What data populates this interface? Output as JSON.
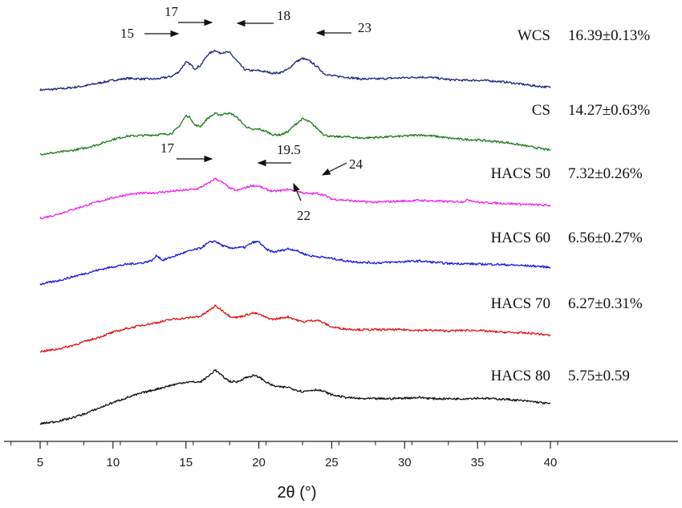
{
  "chart_data": {
    "type": "line",
    "xlabel": "2θ (°)",
    "ylabel": "",
    "xlim": [
      5,
      40
    ],
    "xticks": [
      "5",
      "10",
      "15",
      "20",
      "25",
      "30",
      "35",
      "40"
    ],
    "grid": false,
    "series": [
      {
        "name": "WCS",
        "crystallinity": "16.39±0.13%",
        "color": "#1a237e",
        "baseline": 0.0,
        "x": [
          5,
          6,
          7,
          8,
          9,
          10,
          11,
          12,
          13,
          14,
          14.5,
          15,
          15.3,
          15.6,
          16,
          16.5,
          17,
          17.3,
          17.6,
          18,
          18.5,
          19,
          19.5,
          20,
          20.5,
          21,
          21.5,
          22,
          22.5,
          23,
          23.5,
          24,
          24.5,
          25,
          26,
          27,
          28,
          29,
          30,
          31,
          32,
          33,
          34,
          35,
          36,
          37,
          38,
          39,
          40
        ],
        "y": [
          0.0,
          0.8,
          2.4,
          4.8,
          8.4,
          12.0,
          14.4,
          13.6,
          13.6,
          16.8,
          22.4,
          34.4,
          32.0,
          26.4,
          30.4,
          44.0,
          49.6,
          45.6,
          47.2,
          46.4,
          36.0,
          25.6,
          24.0,
          24.0,
          22.4,
          20.8,
          21.6,
          25.6,
          34.4,
          39.2,
          36.0,
          28.8,
          20.0,
          17.6,
          16.0,
          13.6,
          13.6,
          14.4,
          15.2,
          16.0,
          15.2,
          12.8,
          12.0,
          12.0,
          11.2,
          9.6,
          7.2,
          4.8,
          3.2
        ]
      },
      {
        "name": "CS",
        "crystallinity": "14.27±0.63%",
        "color": "#1e7b1e",
        "baseline": 0.0,
        "x": [
          5,
          6,
          7,
          8,
          9,
          10,
          11,
          12,
          13,
          14,
          14.5,
          15,
          15.3,
          15.6,
          16,
          16.5,
          17,
          17.4,
          17.8,
          18.2,
          18.6,
          19,
          19.5,
          20,
          20.5,
          21,
          21.5,
          22,
          22.5,
          23,
          23.5,
          24,
          24.5,
          25,
          26,
          27,
          28,
          29,
          30,
          31,
          32,
          33,
          34,
          35,
          36,
          37,
          38,
          39,
          40
        ],
        "y": [
          0.0,
          1.6,
          4.0,
          7.2,
          12.0,
          18.4,
          22.4,
          23.2,
          24.0,
          25.6,
          33.6,
          48.0,
          45.6,
          36.0,
          34.4,
          44.8,
          50.4,
          48.8,
          51.2,
          49.6,
          44.0,
          36.0,
          30.4,
          31.2,
          28.0,
          24.0,
          24.0,
          28.0,
          36.8,
          44.0,
          40.0,
          32.0,
          24.0,
          21.6,
          21.6,
          20.0,
          20.8,
          21.6,
          22.4,
          24.0,
          22.4,
          20.0,
          18.4,
          17.6,
          16.0,
          14.4,
          11.2,
          8.0,
          4.8
        ]
      },
      {
        "name": "HACS 50",
        "crystallinity": "7.32±0.26%",
        "color": "#ee22ee",
        "baseline": 0.0,
        "x": [
          5,
          6,
          7,
          8,
          9,
          10,
          11,
          12,
          13,
          14,
          15,
          15.8,
          16.5,
          17,
          17.5,
          18,
          18.5,
          19,
          19.5,
          20,
          20.5,
          21,
          21.5,
          22,
          22.5,
          23,
          23.5,
          24,
          24.5,
          25,
          26,
          27,
          28,
          29,
          30,
          31,
          32,
          33,
          34,
          34.4,
          35,
          36,
          37,
          38,
          39,
          40
        ],
        "y": [
          0.0,
          4.0,
          9.6,
          15.2,
          20.8,
          25.6,
          29.6,
          31.2,
          32.0,
          33.6,
          35.2,
          36.8,
          43.2,
          49.6,
          44.8,
          37.6,
          34.4,
          37.6,
          40.8,
          40.0,
          36.0,
          33.6,
          34.4,
          36.0,
          34.4,
          32.0,
          30.4,
          31.2,
          28.8,
          24.0,
          22.4,
          20.8,
          20.0,
          20.8,
          21.6,
          22.4,
          21.6,
          20.8,
          20.8,
          23.2,
          20.0,
          19.2,
          18.4,
          17.6,
          16.8,
          16.0
        ]
      },
      {
        "name": "HACS 60",
        "crystallinity": "6.56±0.27%",
        "color": "#1717e0",
        "baseline": 0.0,
        "x": [
          5,
          6,
          7,
          8,
          9,
          10,
          11,
          12,
          12.7,
          13,
          13.4,
          14,
          15,
          16,
          16.6,
          17,
          17.5,
          18,
          18.5,
          19,
          19.6,
          20,
          20.5,
          21,
          21.5,
          22,
          22.5,
          23,
          23.5,
          24,
          25,
          26,
          27,
          28,
          29,
          30,
          31,
          32,
          33,
          34,
          35,
          36,
          37,
          38,
          39,
          40
        ],
        "y": [
          0.0,
          3.2,
          8.0,
          12.8,
          17.6,
          21.6,
          24.8,
          26.4,
          29.6,
          36.0,
          29.6,
          33.6,
          40.0,
          44.8,
          52.0,
          53.6,
          48.0,
          44.8,
          45.6,
          45.6,
          52.0,
          52.8,
          43.2,
          40.0,
          41.6,
          44.0,
          42.4,
          38.4,
          35.2,
          34.4,
          32.0,
          28.8,
          27.2,
          26.4,
          27.2,
          28.0,
          28.8,
          27.2,
          25.6,
          25.6,
          24.8,
          24.8,
          24.0,
          23.2,
          22.4,
          20.8
        ]
      },
      {
        "name": "HACS 70",
        "crystallinity": "6.27±0.31%",
        "color": "#e01414",
        "baseline": 0.0,
        "x": [
          5,
          6,
          7,
          8,
          9,
          10,
          11,
          12,
          13,
          14,
          15,
          16,
          16.6,
          17,
          17.5,
          18,
          18.5,
          19,
          19.6,
          20,
          20.5,
          21,
          21.5,
          22,
          22.5,
          23,
          23.5,
          24,
          24.5,
          25,
          26,
          27,
          28,
          29,
          30,
          31,
          32,
          33,
          34,
          35,
          36,
          37,
          38,
          39,
          40
        ],
        "y": [
          0.0,
          2.4,
          6.4,
          12.0,
          17.6,
          24.0,
          28.8,
          32.8,
          36.0,
          40.0,
          41.6,
          44.0,
          51.2,
          56.8,
          51.2,
          44.0,
          42.4,
          44.8,
          48.0,
          46.4,
          42.4,
          40.0,
          41.6,
          43.2,
          40.0,
          36.8,
          38.4,
          39.2,
          35.2,
          30.4,
          28.0,
          27.2,
          27.2,
          27.2,
          27.2,
          26.4,
          26.4,
          25.6,
          26.4,
          26.4,
          24.8,
          24.0,
          23.2,
          22.4,
          20.0
        ]
      },
      {
        "name": "HACS 80",
        "crystallinity": "5.75±0.59",
        "color": "#111111",
        "baseline": 0.0,
        "x": [
          5,
          6,
          7,
          8,
          9,
          10,
          11,
          12,
          13,
          14,
          15,
          16,
          16.6,
          17,
          17.5,
          18,
          18.5,
          19,
          19.6,
          20,
          20.5,
          21,
          21.5,
          22,
          22.5,
          23,
          23.5,
          24,
          24.5,
          25,
          26,
          27,
          28,
          29,
          30,
          31,
          32,
          33,
          34,
          35,
          36,
          37,
          38,
          39,
          40
        ],
        "y": [
          0.0,
          2.4,
          6.4,
          12.0,
          19.2,
          26.4,
          32.8,
          38.4,
          43.2,
          48.0,
          52.0,
          52.0,
          60.0,
          67.2,
          59.2,
          52.8,
          52.0,
          56.8,
          60.0,
          58.4,
          52.0,
          47.2,
          45.6,
          45.6,
          42.4,
          40.0,
          41.6,
          42.4,
          40.0,
          36.0,
          32.8,
          31.2,
          31.2,
          31.2,
          32.0,
          32.8,
          31.2,
          31.2,
          31.2,
          32.0,
          31.2,
          30.4,
          28.8,
          27.2,
          24.8
        ]
      }
    ],
    "annotations": [
      {
        "text": "15",
        "series": "WCS"
      },
      {
        "text": "17",
        "series": "WCS"
      },
      {
        "text": "18",
        "series": "WCS"
      },
      {
        "text": "23",
        "series": "WCS"
      },
      {
        "text": "17",
        "series": "HACS 50"
      },
      {
        "text": "19.5",
        "series": "HACS 50"
      },
      {
        "text": "24",
        "series": "HACS 50"
      },
      {
        "text": "22",
        "series": "HACS 50"
      }
    ]
  }
}
